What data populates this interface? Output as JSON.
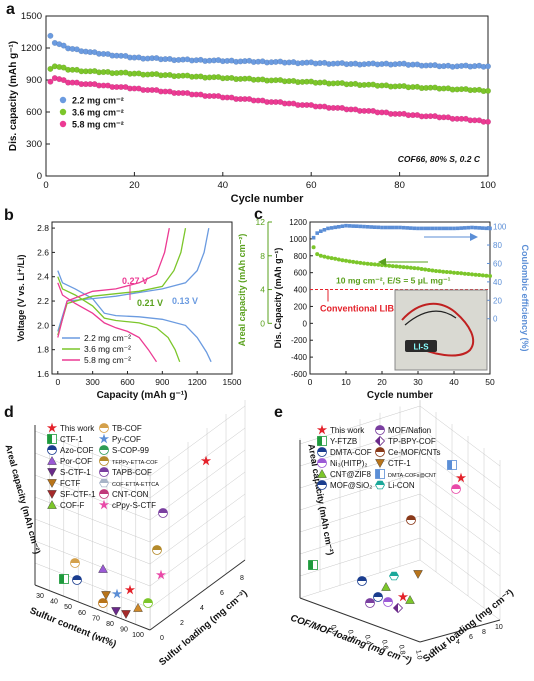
{
  "panels": {
    "a": {
      "label": "a",
      "ylabel": "Dis. capacity (mAh g⁻¹)",
      "xlabel": "Cycle number",
      "xticks": [
        "0",
        "20",
        "40",
        "60",
        "80",
        "100"
      ],
      "yticks": [
        "0",
        "300",
        "600",
        "900",
        "1200",
        "1500"
      ],
      "legend": [
        "2.2 mg cm⁻²",
        "3.6 mg cm⁻²",
        "5.8 mg cm⁻²"
      ],
      "note": "COF66, 80% S, 0.2 C"
    },
    "b": {
      "label": "b",
      "ylabel": "Voltage (V vs. Li⁺/Li)",
      "xlabel": "Capacity (mAh g⁻¹)",
      "xticks": [
        "0",
        "300",
        "600",
        "900",
        "1200",
        "1500"
      ],
      "yticks": [
        "1.6",
        "1.8",
        "2.0",
        "2.2",
        "2.4",
        "2.6",
        "2.8"
      ],
      "legend": [
        "2.2 mg cm⁻²",
        "3.6 mg cm⁻²",
        "5.8 mg cm⁻²"
      ],
      "ann": [
        "0.27 V",
        "0.21 V",
        "0.13 V"
      ]
    },
    "c": {
      "label": "c",
      "ylabel_left": "Dis. Capacity (mAh g⁻¹)",
      "ylabel_areal": "Areal capacity (mAh cm⁻²)",
      "ylabel_right": "Coulombic efficiency (%)",
      "xlabel": "Cycle number",
      "xticks": [
        "0",
        "10",
        "20",
        "30",
        "40",
        "50"
      ],
      "yticks_left": [
        "-600",
        "-400",
        "-200",
        "0",
        "200",
        "400",
        "600",
        "800",
        "1000",
        "1200"
      ],
      "yticks_areal": [
        "0",
        "4",
        "8",
        "12"
      ],
      "yticks_right": [
        "0",
        "20",
        "40",
        "60",
        "80",
        "100"
      ],
      "cond": "10 mg cm⁻², E/S = 5 μL mg⁻¹",
      "conv": "Conventional LIBs",
      "device": "LI-S"
    },
    "d": {
      "label": "d",
      "legend_col1": [
        "This work",
        "CTF-1",
        "Azo-COF",
        "Por-COF",
        "S-CTF-1",
        "FCTF",
        "SF-CTF-1",
        "COF-F"
      ],
      "legend_col2": [
        "TB-COF",
        "Py-COF",
        "S-COP-99",
        "TFPPy-ETTA-COF",
        "TAPB-COF",
        "COF-ETTA-ETTCA",
        "CNT-CON",
        "cPpy-S-CTF"
      ],
      "axis_z": "Areal capacity (mAh cm⁻²)",
      "axis_x": "Sulfur content (wt%)",
      "axis_y": "Sulfur loading (mg cm⁻²)",
      "xticks": [
        "30",
        "40",
        "50",
        "60",
        "70",
        "80",
        "90",
        "100"
      ],
      "yticks": [
        "0",
        "2",
        "4",
        "6",
        "8"
      ]
    },
    "e": {
      "label": "e",
      "legend_col1": [
        "This work",
        "Y-FTZB",
        "DMTA-COF",
        "Ni₃(HITP)₂",
        "CNT@ZIF8",
        "MOF@SiO₂"
      ],
      "legend_col2": [
        "MOF/Nafion",
        "TP-BPY-COF",
        "Ce-MOF/CNTs",
        "CTF-1",
        "DMTA-COFs@CNT",
        "Li-CON"
      ],
      "axis_z": "Areal capacity (mAh cm⁻²)",
      "axis_x": "COF/MOF loading (mg cm⁻²)",
      "axis_y": "Sulfur loading (mg cm⁻²)",
      "xticks": [
        "0.0",
        "0.2",
        "0.4",
        "0.6",
        "0.8",
        "1.0"
      ],
      "yticks": [
        "0",
        "2",
        "4",
        "6",
        "8",
        "10"
      ]
    }
  },
  "colors": {
    "blue": "#6b9be0",
    "green": "#7cc62a",
    "pink": "#ec3a93",
    "red": "#e4222b",
    "arrowblue": "#5b8ed6"
  },
  "chart_data": [
    {
      "type": "line",
      "title": "",
      "xlabel": "Cycle number",
      "ylabel": "Dis. capacity (mAh g⁻¹)",
      "xlim": [
        0,
        100
      ],
      "ylim": [
        0,
        1500
      ],
      "series": [
        {
          "name": "2.2 mg cm⁻²",
          "x": [
            1,
            2,
            5,
            10,
            20,
            30,
            40,
            50,
            60,
            70,
            80,
            90,
            100
          ],
          "values": [
            1320,
            1250,
            1200,
            1160,
            1110,
            1090,
            1080,
            1070,
            1060,
            1050,
            1050,
            1030,
            1030
          ]
        },
        {
          "name": "3.6 mg cm⁻²",
          "x": [
            1,
            2,
            5,
            10,
            20,
            30,
            40,
            50,
            60,
            70,
            80,
            90,
            100
          ],
          "values": [
            1010,
            1030,
            1000,
            980,
            960,
            940,
            920,
            900,
            880,
            860,
            840,
            820,
            800
          ]
        },
        {
          "name": "5.8 mg cm⁻²",
          "x": [
            1,
            2,
            5,
            10,
            20,
            30,
            40,
            50,
            60,
            70,
            80,
            90,
            100
          ],
          "values": [
            890,
            920,
            880,
            860,
            820,
            780,
            740,
            700,
            660,
            620,
            580,
            550,
            510
          ]
        }
      ]
    },
    {
      "type": "line",
      "title": "",
      "xlabel": "Capacity (mAh g⁻¹)",
      "ylabel": "Voltage (V vs. Li⁺/Li)",
      "xlim": [
        -50,
        1500
      ],
      "ylim": [
        1.6,
        2.85
      ],
      "series": [
        {
          "name": "2.2 mg cm⁻²",
          "part": "discharge",
          "x": [
            0,
            40,
            150,
            300,
            400,
            500,
            700,
            900,
            1100,
            1200,
            1280,
            1320
          ],
          "values": [
            2.45,
            2.35,
            2.3,
            2.22,
            2.1,
            2.08,
            2.07,
            2.05,
            2.0,
            1.9,
            1.78,
            1.7
          ]
        },
        {
          "name": "2.2 mg cm⁻²",
          "part": "charge",
          "x": [
            0,
            80,
            300,
            500,
            700,
            900,
            1100,
            1200,
            1260,
            1300
          ],
          "values": [
            1.95,
            2.2,
            2.22,
            2.24,
            2.27,
            2.3,
            2.35,
            2.45,
            2.6,
            2.8
          ]
        },
        {
          "name": "3.6 mg cm⁻²",
          "part": "discharge",
          "x": [
            0,
            40,
            150,
            300,
            400,
            500,
            700,
            850,
            950,
            1010,
            1050
          ],
          "values": [
            2.4,
            2.3,
            2.25,
            2.16,
            2.06,
            2.04,
            2.02,
            1.98,
            1.9,
            1.8,
            1.7
          ]
        },
        {
          "name": "3.6 mg cm⁻²",
          "part": "charge",
          "x": [
            0,
            80,
            300,
            500,
            700,
            900,
            1000,
            1060,
            1100
          ],
          "values": [
            1.92,
            2.18,
            2.24,
            2.26,
            2.28,
            2.32,
            2.45,
            2.6,
            2.8
          ]
        },
        {
          "name": "5.8 mg cm⁻²",
          "part": "discharge",
          "x": [
            0,
            40,
            150,
            300,
            400,
            500,
            600,
            700,
            780,
            850
          ],
          "values": [
            2.35,
            2.25,
            2.18,
            2.1,
            2.02,
            1.98,
            1.95,
            1.9,
            1.8,
            1.7
          ]
        },
        {
          "name": "5.8 mg cm⁻²",
          "part": "charge",
          "x": [
            0,
            80,
            300,
            500,
            700,
            850,
            920,
            960
          ],
          "values": [
            1.9,
            2.2,
            2.28,
            2.3,
            2.35,
            2.42,
            2.6,
            2.8
          ]
        }
      ]
    },
    {
      "type": "scatter",
      "title": "",
      "xlabel": "Cycle number",
      "ylabel": "Dis. Capacity (mAh g⁻¹)",
      "xlim": [
        0,
        50
      ],
      "ylim": [
        -600,
        1200
      ],
      "series": [
        {
          "name": "Discharge capacity",
          "x": [
            1,
            2,
            3,
            5,
            10,
            15,
            20,
            25,
            30,
            35,
            40,
            45,
            50
          ],
          "values": [
            900,
            820,
            800,
            780,
            740,
            710,
            690,
            670,
            650,
            620,
            600,
            580,
            560
          ]
        },
        {
          "name": "Coulombic efficiency",
          "axis": "right",
          "x": [
            1,
            2,
            3,
            5,
            10,
            15,
            20,
            25,
            30,
            35,
            40,
            45,
            50
          ],
          "values": [
            88,
            93,
            95,
            98,
            101,
            100,
            99,
            99,
            98,
            98,
            98,
            99,
            98
          ]
        }
      ],
      "reference_line": {
        "label": "Conventional LIBs",
        "areal": 4
      }
    }
  ]
}
